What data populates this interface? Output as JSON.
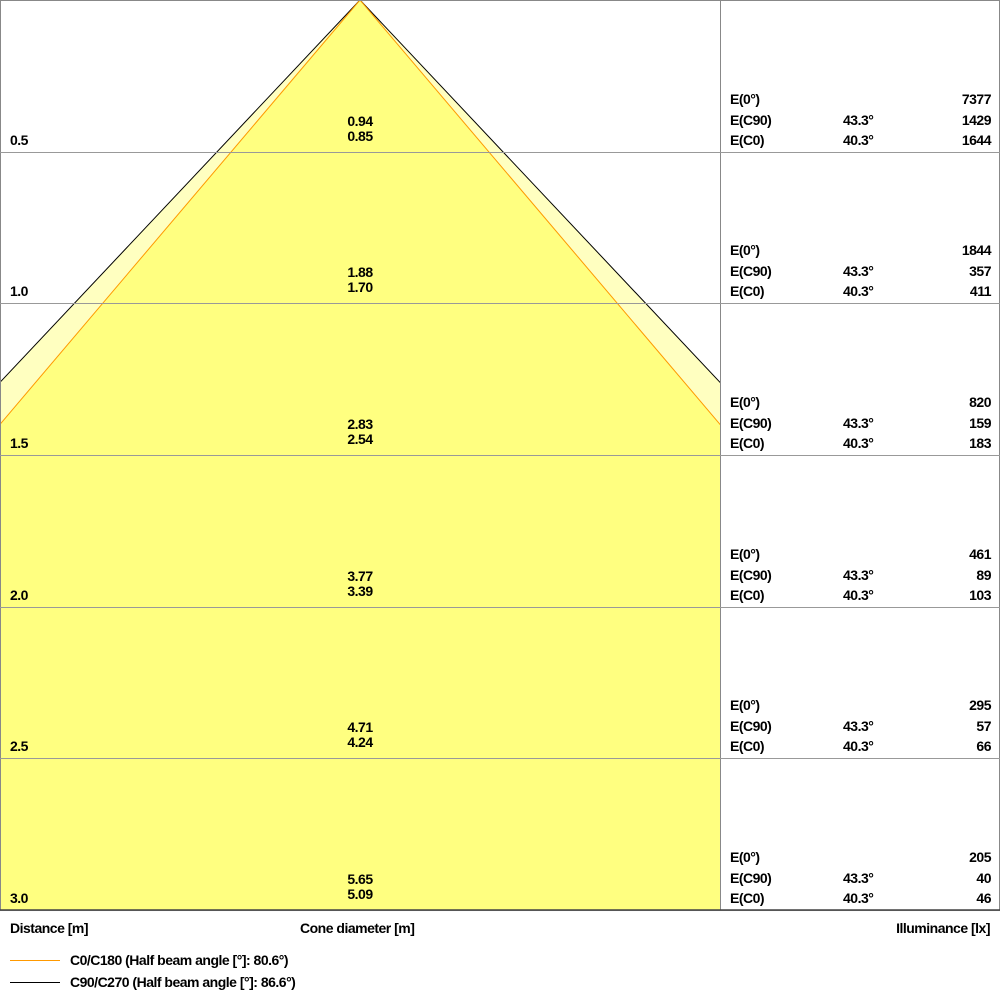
{
  "chart_data": {
    "type": "diagram",
    "labels": {
      "distance": "Distance [m]",
      "cone_diameter": "Cone diameter [m]",
      "illuminance": "Illuminance [lx]"
    },
    "legend": [
      {
        "label": "C0/C180 (Half beam angle [°]: 80.6°)",
        "color": "#ff9900"
      },
      {
        "label": "C90/C270 (Half beam angle [°]: 86.6°)",
        "color": "#000000"
      }
    ],
    "fill_colors": {
      "inner": "#ffff80",
      "outer": "#ffffc0"
    },
    "rows": [
      {
        "distance": "0.5",
        "d_c90": "0.94",
        "d_c0": "0.85",
        "e0_label": "E(0°)",
        "e0": "7377",
        "ec90_label": "E(C90)",
        "ec90_angle": "43.3°",
        "ec90": "1429",
        "ec0_label": "E(C0)",
        "ec0_angle": "40.3°",
        "ec0": "1644"
      },
      {
        "distance": "1.0",
        "d_c90": "1.88",
        "d_c0": "1.70",
        "e0_label": "E(0°)",
        "e0": "1844",
        "ec90_label": "E(C90)",
        "ec90_angle": "43.3°",
        "ec90": "357",
        "ec0_label": "E(C0)",
        "ec0_angle": "40.3°",
        "ec0": "411"
      },
      {
        "distance": "1.5",
        "d_c90": "2.83",
        "d_c0": "2.54",
        "e0_label": "E(0°)",
        "e0": "820",
        "ec90_label": "E(C90)",
        "ec90_angle": "43.3°",
        "ec90": "159",
        "ec0_label": "E(C0)",
        "ec0_angle": "40.3°",
        "ec0": "183"
      },
      {
        "distance": "2.0",
        "d_c90": "3.77",
        "d_c0": "3.39",
        "e0_label": "E(0°)",
        "e0": "461",
        "ec90_label": "E(C90)",
        "ec90_angle": "43.3°",
        "ec90": "89",
        "ec0_label": "E(C0)",
        "ec0_angle": "40.3°",
        "ec0": "103"
      },
      {
        "distance": "2.5",
        "d_c90": "4.71",
        "d_c0": "4.24",
        "e0_label": "E(0°)",
        "e0": "295",
        "ec90_label": "E(C90)",
        "ec90_angle": "43.3°",
        "ec90": "57",
        "ec0_label": "E(C0)",
        "ec0_angle": "40.3°",
        "ec0": "66"
      },
      {
        "distance": "3.0",
        "d_c90": "5.65",
        "d_c0": "5.09",
        "e0_label": "E(0°)",
        "e0": "205",
        "ec90_label": "E(C90)",
        "ec90_angle": "43.3°",
        "ec90": "40",
        "ec0_label": "E(C0)",
        "ec0_angle": "40.3°",
        "ec0": "46"
      }
    ]
  }
}
